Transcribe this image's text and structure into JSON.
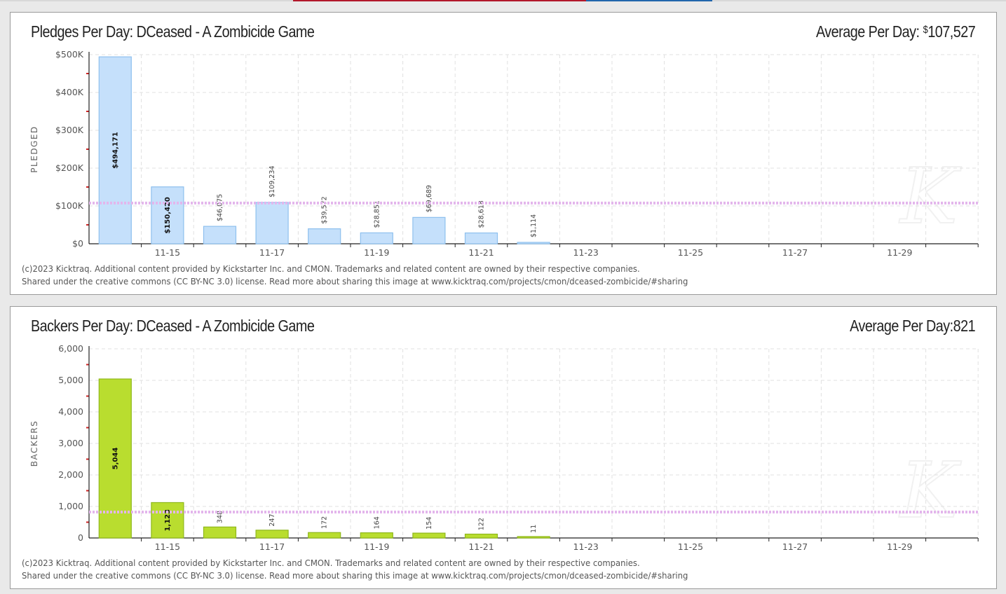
{
  "page": {
    "strip_colors": [
      "#d8d8d8",
      "#b2182b",
      "#2166ac"
    ]
  },
  "charts": [
    {
      "title": "Pledges Per Day: DCeased - A Zombicide Game",
      "avg_label": "Average Per Day:",
      "avg_currency": "$",
      "avg_value": "107,527",
      "footer_line1": "(c)2023 Kicktraq. Additional content provided by Kickstarter Inc. and CMON. Trademarks and related content are owned by their respective companies.",
      "footer_line2": "Shared under the creative commons (CC BY-NC 3.0) license. Read more about sharing this image at www.kicktraq.com/projects/cmon/dceased-zombicide/#sharing"
    },
    {
      "title": "Backers Per Day: DCeased - A Zombicide Game",
      "avg_label": "Average Per Day:",
      "avg_value": "821",
      "footer_line1": "(c)2023 Kicktraq. Additional content provided by Kickstarter Inc. and CMON. Trademarks and related content are owned by their respective companies.",
      "footer_line2": "Shared under the creative commons (CC BY-NC 3.0) license. Read more about sharing this image at www.kicktraq.com/projects/cmon/dceased-zombicide/#sharing"
    }
  ],
  "chart_data": [
    {
      "type": "bar",
      "title": "Pledges Per Day: DCeased - A Zombicide Game",
      "xlabel": "",
      "ylabel": "PLEDGED",
      "ylim": [
        0,
        500000
      ],
      "yticks": [
        0,
        100000,
        200000,
        300000,
        400000,
        500000
      ],
      "ytick_labels": [
        "$0",
        "$100K",
        "$200K",
        "$300K",
        "$400K",
        "$500K"
      ],
      "slots": [
        "11-14",
        "11-15",
        "11-16",
        "11-17",
        "11-18",
        "11-19",
        "11-20",
        "11-21",
        "11-22",
        "11-23",
        "11-24",
        "11-25",
        "11-26",
        "11-27",
        "11-28",
        "11-29",
        "11-30"
      ],
      "xtick_labels": [
        "11-15",
        "11-17",
        "11-19",
        "11-21",
        "11-23",
        "11-25",
        "11-27",
        "11-29"
      ],
      "categories": [
        "11-14",
        "11-15",
        "11-16",
        "11-17",
        "11-18",
        "11-19",
        "11-20",
        "11-21",
        "11-22"
      ],
      "values": [
        494171,
        150420,
        46075,
        109234,
        39572,
        28851,
        69689,
        28618,
        1114
      ],
      "value_labels": [
        "$494,171",
        "$150,420",
        "$46,075",
        "$109,234",
        "$39,572",
        "$28,851",
        "$69,689",
        "$28,618",
        "$1,114"
      ],
      "average": 107527,
      "grid": true,
      "colors": {
        "fill": "#c5e0fb",
        "stroke": "#8ec0ee",
        "avg_line": "#e3b6ec"
      }
    },
    {
      "type": "bar",
      "title": "Backers Per Day: DCeased - A Zombicide Game",
      "xlabel": "",
      "ylabel": "BACKERS",
      "ylim": [
        0,
        6000
      ],
      "yticks": [
        0,
        1000,
        2000,
        3000,
        4000,
        5000,
        6000
      ],
      "ytick_labels": [
        "0",
        "1,000",
        "2,000",
        "3,000",
        "4,000",
        "5,000",
        "6,000"
      ],
      "slots": [
        "11-14",
        "11-15",
        "11-16",
        "11-17",
        "11-18",
        "11-19",
        "11-20",
        "11-21",
        "11-22",
        "11-23",
        "11-24",
        "11-25",
        "11-26",
        "11-27",
        "11-28",
        "11-29",
        "11-30"
      ],
      "xtick_labels": [
        "11-15",
        "11-17",
        "11-19",
        "11-21",
        "11-23",
        "11-25",
        "11-27",
        "11-29"
      ],
      "categories": [
        "11-14",
        "11-15",
        "11-16",
        "11-17",
        "11-18",
        "11-19",
        "11-20",
        "11-21",
        "11-22"
      ],
      "values": [
        5044,
        1123,
        348,
        247,
        172,
        164,
        154,
        122,
        11
      ],
      "value_labels": [
        "5,044",
        "1,123",
        "348",
        "247",
        "172",
        "164",
        "154",
        "122",
        "11"
      ],
      "average": 821,
      "grid": true,
      "colors": {
        "fill": "#b9dd2f",
        "stroke": "#8fb81c",
        "avg_line": "#e3b6ec"
      }
    }
  ]
}
